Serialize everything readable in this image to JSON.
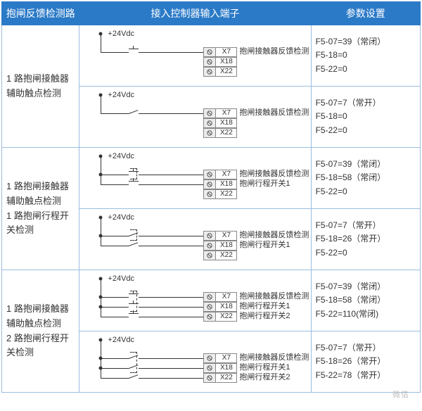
{
  "headers": {
    "col1": "抱闸反馈检测路",
    "col2": "接入控制器输入端子",
    "col3": "参数设置"
  },
  "voltage_label": "+24Vdc",
  "terminals": {
    "x7": "X7",
    "x18": "X18",
    "x22": "X22"
  },
  "notes": {
    "fb": "抱闸接触器反馈检测",
    "sw1": "抱闸行程开关1",
    "sw2": "抱闸行程开关2"
  },
  "rows": [
    {
      "left": "1 路抱闸接触器辅助触点检测",
      "variants": [
        {
          "switches": 1,
          "type": "nc",
          "term_notes": [
            "fb",
            "",
            ""
          ],
          "params": [
            "F5-07=39（常闭）",
            "F5-18=0",
            "F5-22=0"
          ]
        },
        {
          "switches": 1,
          "type": "no",
          "term_notes": [
            "fb",
            "",
            ""
          ],
          "params": [
            "F5-07=7（常开）",
            "F5-18=0",
            "F5-22=0"
          ]
        }
      ]
    },
    {
      "left": "1 路抱闸接触器辅助触点检测\n1 路抱闸行程开关检测",
      "variants": [
        {
          "switches": 2,
          "type": "nc",
          "term_notes": [
            "fb",
            "sw1",
            ""
          ],
          "params": [
            "F5-07=39（常闭）",
            "F5-18=58（常闭）",
            "F5-22=0"
          ]
        },
        {
          "switches": 2,
          "type": "no",
          "term_notes": [
            "fb",
            "sw1",
            ""
          ],
          "params": [
            "F5-07=7（常开）",
            "F5-18=26（常开）",
            "F5-22=0"
          ]
        }
      ]
    },
    {
      "left": "1 路抱闸接触器辅助触点检测\n2 路抱闸行程开关检测",
      "variants": [
        {
          "switches": 3,
          "type": "nc",
          "term_notes": [
            "fb",
            "sw1",
            "sw2"
          ],
          "params": [
            "F5-07=39（常闭）",
            "F5-18=58（常闭）",
            "F5-22=110(常闭)"
          ]
        },
        {
          "switches": 3,
          "type": "no",
          "term_notes": [
            "fb",
            "sw1",
            "sw2"
          ],
          "params": [
            "F5-07=7（常开）",
            "F5-18=26（常开）",
            "F5-22=78（常开）"
          ]
        }
      ]
    }
  ],
  "colors": {
    "header_bg": "#2b7ac7",
    "header_fg": "#ffffff",
    "border": "#9bbde0",
    "line": "#333333"
  }
}
